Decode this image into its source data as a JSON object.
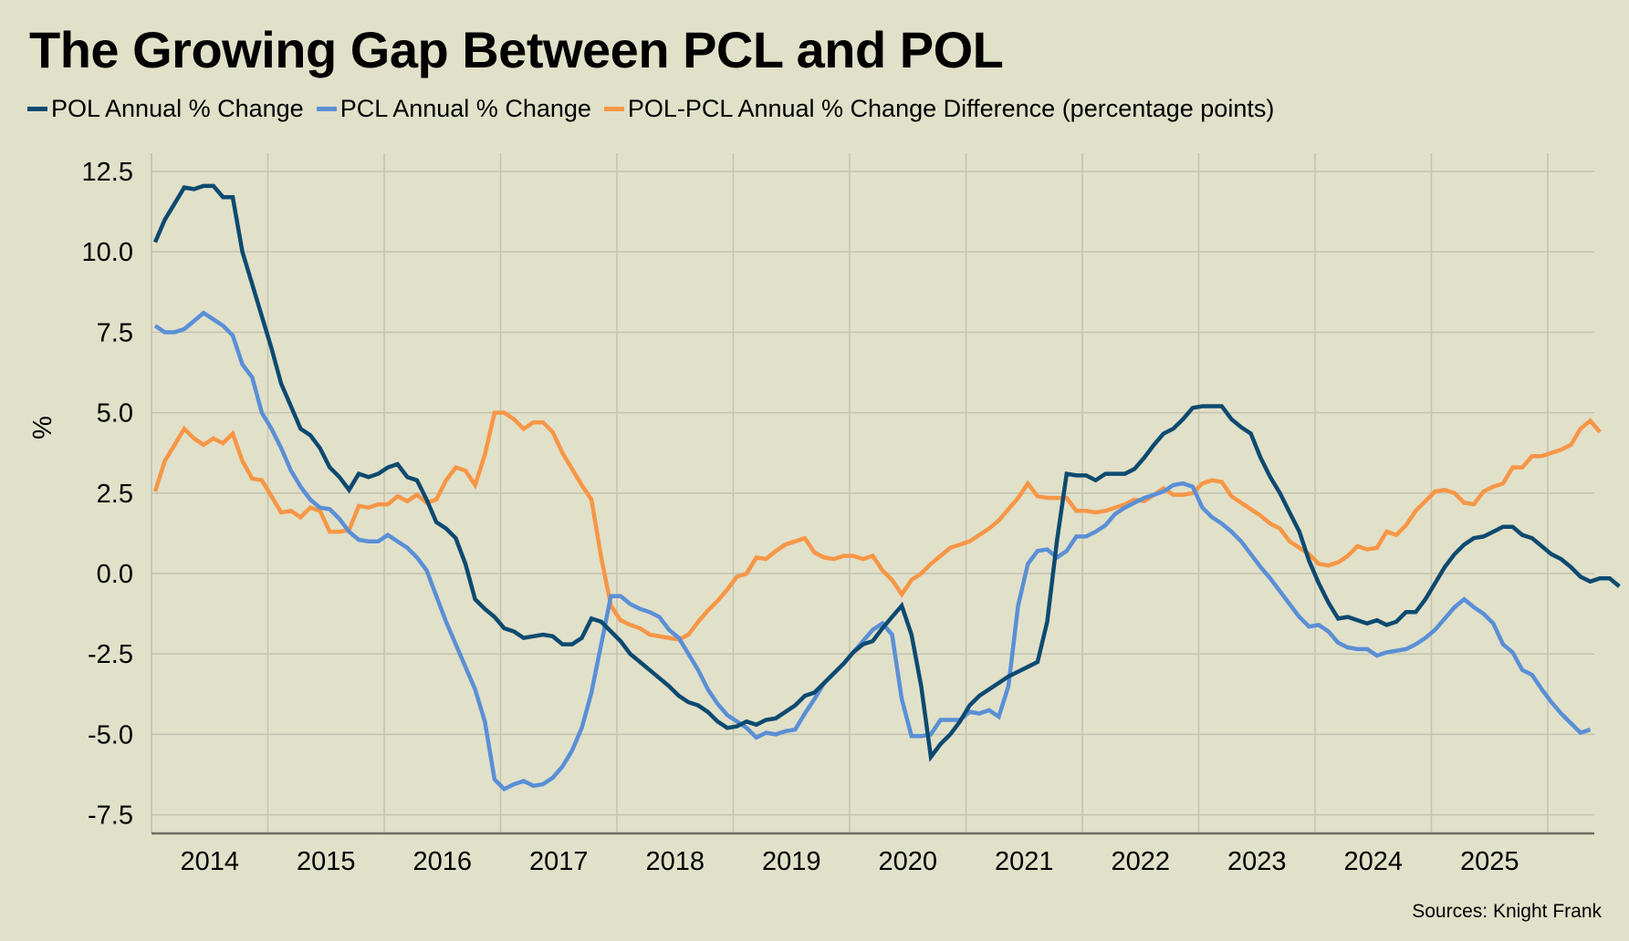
{
  "title": "The Growing Gap Between PCL and POL",
  "source": "Sources: Knight Frank",
  "chart_data": {
    "type": "line",
    "title": "The Growing Gap Between PCL and POL",
    "xlabel": "",
    "ylabel": "%",
    "ylim": [
      -8.5,
      13.0
    ],
    "yticks": [
      12.5,
      10.0,
      7.5,
      5.0,
      2.5,
      0.0,
      -2.5,
      -5.0,
      -7.5
    ],
    "ytick_labels": [
      "12.5",
      "10.0",
      "7.5",
      "5.0",
      "2.5",
      "0.0",
      "-2.5",
      "-5.0",
      "-7.5"
    ],
    "x_start": "2014-01",
    "x_step": "month",
    "xtick_labels": [
      "2014",
      "2015",
      "2016",
      "2017",
      "2018",
      "2019",
      "2020",
      "2021",
      "2022",
      "2023",
      "2024",
      "2025"
    ],
    "grid": true,
    "legend_position": "top-left",
    "source": "Sources: Knight Frank",
    "series": [
      {
        "name": "POL Annual % Change",
        "color": "#0d4a70",
        "values": [
          10.3,
          11.0,
          11.5,
          12.0,
          11.95,
          12.05,
          12.05,
          11.7,
          11.7,
          10.0,
          9.0,
          8.0,
          7.0,
          5.9,
          5.2,
          4.5,
          4.3,
          3.9,
          3.3,
          3.0,
          2.6,
          3.1,
          3.0,
          3.1,
          3.3,
          3.4,
          3.0,
          2.9,
          2.3,
          1.6,
          1.4,
          1.1,
          0.3,
          -0.8,
          -1.1,
          -1.35,
          -1.7,
          -1.8,
          -2.0,
          -1.95,
          -1.9,
          -1.95,
          -2.2,
          -2.2,
          -2.0,
          -1.4,
          -1.5,
          -1.8,
          -2.1,
          -2.5,
          -2.75,
          -3.0,
          -3.25,
          -3.5,
          -3.8,
          -4.0,
          -4.1,
          -4.3,
          -4.6,
          -4.8,
          -4.75,
          -4.6,
          -4.7,
          -4.55,
          -4.5,
          -4.3,
          -4.1,
          -3.8,
          -3.7,
          -3.4,
          -3.1,
          -2.8,
          -2.45,
          -2.2,
          -2.1,
          -1.7,
          -1.35,
          -1.0,
          -1.9,
          -3.5,
          -5.7,
          -5.3,
          -5.0,
          -4.6,
          -4.1,
          -3.8,
          -3.6,
          -3.4,
          -3.2,
          -3.05,
          -2.9,
          -2.75,
          -1.5,
          1.0,
          3.1,
          3.05,
          3.05,
          2.9,
          3.1,
          3.1,
          3.1,
          3.25,
          3.6,
          4.0,
          4.35,
          4.5,
          4.8,
          5.15,
          5.2,
          5.2,
          5.2,
          4.8,
          4.55,
          4.35,
          3.6,
          3.0,
          2.5,
          1.9,
          1.3,
          0.4,
          -0.3,
          -0.9,
          -1.4,
          -1.35,
          -1.45,
          -1.55,
          -1.45,
          -1.6,
          -1.5,
          -1.2,
          -1.2,
          -0.8,
          -0.3,
          0.2,
          0.6,
          0.9,
          1.1,
          1.15,
          1.3,
          1.45,
          1.45,
          1.2,
          1.1,
          0.85,
          0.6,
          0.45,
          0.2,
          -0.1,
          -0.25,
          -0.15,
          -0.15,
          -0.4
        ]
      },
      {
        "name": "PCL Annual % Change",
        "color": "#5a8fd6",
        "values": [
          7.7,
          7.5,
          7.5,
          7.6,
          7.85,
          8.1,
          7.9,
          7.7,
          7.4,
          6.5,
          6.1,
          5.0,
          4.5,
          3.9,
          3.2,
          2.7,
          2.3,
          2.05,
          2.0,
          1.7,
          1.3,
          1.05,
          1.0,
          1.0,
          1.2,
          1.0,
          0.8,
          0.5,
          0.1,
          -0.7,
          -1.5,
          -2.2,
          -2.9,
          -3.6,
          -4.6,
          -6.4,
          -6.7,
          -6.55,
          -6.45,
          -6.6,
          -6.55,
          -6.35,
          -6.0,
          -5.5,
          -4.8,
          -3.7,
          -2.2,
          -0.7,
          -0.7,
          -0.95,
          -1.1,
          -1.2,
          -1.35,
          -1.75,
          -2.0,
          -2.5,
          -3.0,
          -3.6,
          -4.05,
          -4.4,
          -4.6,
          -4.8,
          -5.1,
          -4.95,
          -5.0,
          -4.9,
          -4.85,
          -4.35,
          -3.9,
          -3.4,
          -3.1,
          -2.8,
          -2.45,
          -2.1,
          -1.75,
          -1.55,
          -1.9,
          -3.9,
          -5.05,
          -5.05,
          -5.0,
          -4.55,
          -4.55,
          -4.55,
          -4.3,
          -4.35,
          -4.25,
          -4.45,
          -3.5,
          -1.0,
          0.3,
          0.7,
          0.75,
          0.5,
          0.7,
          1.15,
          1.15,
          1.3,
          1.5,
          1.85,
          2.05,
          2.2,
          2.35,
          2.45,
          2.55,
          2.75,
          2.8,
          2.7,
          2.05,
          1.75,
          1.55,
          1.3,
          1.0,
          0.6,
          0.2,
          -0.15,
          -0.55,
          -0.95,
          -1.35,
          -1.65,
          -1.6,
          -1.8,
          -2.15,
          -2.3,
          -2.35,
          -2.35,
          -2.55,
          -2.45,
          -2.4,
          -2.35,
          -2.2,
          -2.0,
          -1.75,
          -1.4,
          -1.05,
          -0.8,
          -1.05,
          -1.25,
          -1.55,
          -2.2,
          -2.45,
          -3.0,
          -3.15,
          -3.6,
          -4.0,
          -4.35,
          -4.65,
          -4.95,
          -4.85
        ]
      },
      {
        "name": "POL-PCL Annual % Change Difference (percentage points)",
        "color": "#f79646",
        "values": [
          2.55,
          3.5,
          4.0,
          4.5,
          4.2,
          4.0,
          4.2,
          4.05,
          4.35,
          3.5,
          2.95,
          2.9,
          2.4,
          1.9,
          1.95,
          1.75,
          2.05,
          1.95,
          1.3,
          1.3,
          1.35,
          2.1,
          2.05,
          2.15,
          2.15,
          2.4,
          2.25,
          2.45,
          2.2,
          2.3,
          2.9,
          3.3,
          3.2,
          2.75,
          3.7,
          5.0,
          5.0,
          4.8,
          4.5,
          4.7,
          4.7,
          4.4,
          3.75,
          3.25,
          2.75,
          2.3,
          0.5,
          -1.0,
          -1.45,
          -1.6,
          -1.7,
          -1.9,
          -1.95,
          -2.0,
          -2.05,
          -1.9,
          -1.5,
          -1.15,
          -0.85,
          -0.5,
          -0.1,
          0.0,
          0.5,
          0.45,
          0.7,
          0.9,
          1.0,
          1.1,
          0.65,
          0.5,
          0.45,
          0.55,
          0.55,
          0.45,
          0.55,
          0.1,
          -0.2,
          -0.65,
          -0.2,
          0.0,
          0.3,
          0.55,
          0.8,
          0.9,
          1.0,
          1.2,
          1.4,
          1.65,
          2.0,
          2.35,
          2.8,
          2.4,
          2.35,
          2.35,
          2.35,
          1.95,
          1.95,
          1.9,
          1.95,
          2.05,
          2.15,
          2.3,
          2.25,
          2.45,
          2.65,
          2.45,
          2.45,
          2.5,
          2.8,
          2.9,
          2.85,
          2.4,
          2.2,
          2.0,
          1.8,
          1.55,
          1.4,
          1.0,
          0.8,
          0.6,
          0.3,
          0.25,
          0.35,
          0.55,
          0.85,
          0.75,
          0.8,
          1.3,
          1.2,
          1.5,
          1.95,
          2.25,
          2.55,
          2.6,
          2.5,
          2.2,
          2.15,
          2.55,
          2.7,
          2.8,
          3.3,
          3.3,
          3.65,
          3.65,
          3.75,
          3.85,
          4.0,
          4.5,
          4.75,
          4.4
        ]
      }
    ]
  }
}
